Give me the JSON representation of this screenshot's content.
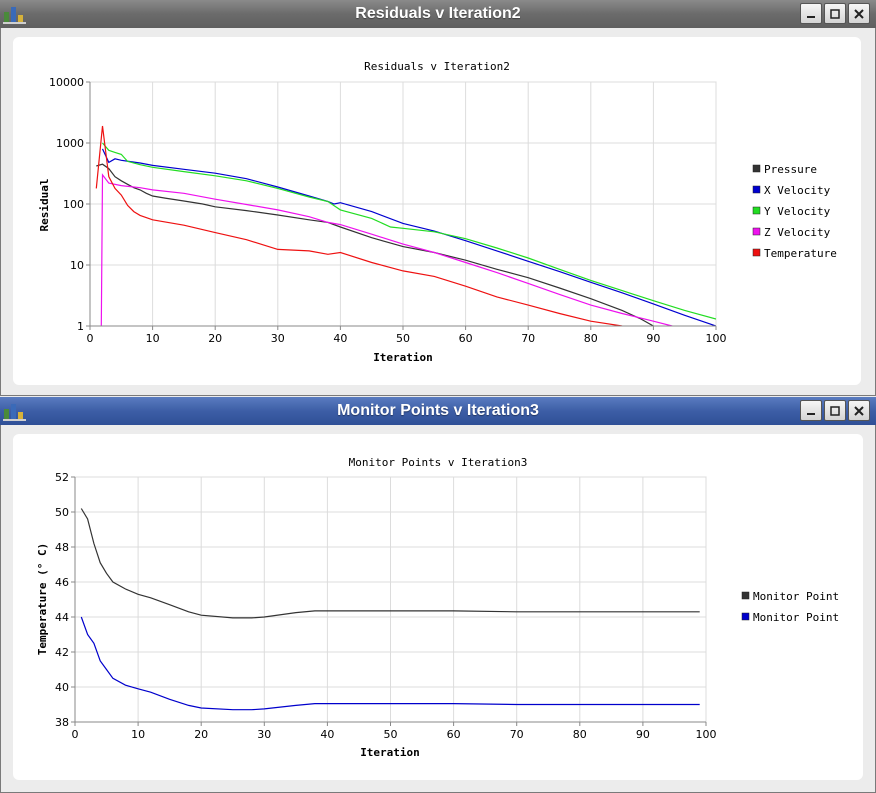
{
  "windows": [
    {
      "title": "Residuals v Iteration2",
      "chart_data": {
        "type": "line",
        "title": "Residuals v Iteration2",
        "xlabel": "Iteration",
        "ylabel": "Residual",
        "xlim": [
          0,
          100
        ],
        "ylim": [
          1,
          10000
        ],
        "yscale": "log",
        "xticks": [
          0,
          10,
          20,
          30,
          40,
          50,
          60,
          70,
          80,
          90,
          100
        ],
        "yticks": [
          1,
          10,
          100,
          1000,
          10000
        ],
        "grid": true,
        "legend": "right",
        "series": [
          {
            "name": "Pressure",
            "color": "#333333",
            "points": [
              [
                1,
                420
              ],
              [
                2,
                450
              ],
              [
                3,
                380
              ],
              [
                4,
                280
              ],
              [
                5,
                240
              ],
              [
                6,
                210
              ],
              [
                7,
                185
              ],
              [
                8,
                170
              ],
              [
                9,
                150
              ],
              [
                10,
                135
              ],
              [
                12,
                125
              ],
              [
                15,
                112
              ],
              [
                18,
                100
              ],
              [
                20,
                90
              ],
              [
                25,
                78
              ],
              [
                30,
                66
              ],
              [
                35,
                55
              ],
              [
                38,
                50
              ],
              [
                40,
                42
              ],
              [
                45,
                28
              ],
              [
                50,
                20
              ],
              [
                55,
                16
              ],
              [
                60,
                12
              ],
              [
                65,
                8.5
              ],
              [
                70,
                6.2
              ],
              [
                75,
                4.2
              ],
              [
                80,
                2.8
              ],
              [
                85,
                1.8
              ],
              [
                88,
                1.3
              ],
              [
                90,
                1.0
              ]
            ]
          },
          {
            "name": "X Velocity",
            "color": "#0000d0",
            "points": [
              [
                2,
                800
              ],
              [
                3,
                480
              ],
              [
                4,
                550
              ],
              [
                5,
                520
              ],
              [
                8,
                470
              ],
              [
                10,
                430
              ],
              [
                15,
                370
              ],
              [
                20,
                320
              ],
              [
                25,
                260
              ],
              [
                30,
                190
              ],
              [
                35,
                135
              ],
              [
                38,
                110
              ],
              [
                39,
                100
              ],
              [
                40,
                105
              ],
              [
                45,
                75
              ],
              [
                50,
                48
              ],
              [
                55,
                36
              ],
              [
                60,
                25
              ],
              [
                65,
                17
              ],
              [
                70,
                11.5
              ],
              [
                75,
                7.8
              ],
              [
                80,
                5.2
              ],
              [
                85,
                3.5
              ],
              [
                90,
                2.3
              ],
              [
                95,
                1.5
              ],
              [
                100,
                1.0
              ]
            ]
          },
          {
            "name": "Y Velocity",
            "color": "#22dd22",
            "points": [
              [
                2,
                1000
              ],
              [
                3,
                760
              ],
              [
                4,
                700
              ],
              [
                5,
                650
              ],
              [
                6,
                500
              ],
              [
                8,
                440
              ],
              [
                10,
                400
              ],
              [
                15,
                340
              ],
              [
                20,
                290
              ],
              [
                25,
                240
              ],
              [
                30,
                180
              ],
              [
                35,
                130
              ],
              [
                38,
                110
              ],
              [
                40,
                80
              ],
              [
                45,
                58
              ],
              [
                48,
                42
              ],
              [
                50,
                40
              ],
              [
                55,
                35
              ],
              [
                60,
                27
              ],
              [
                65,
                19
              ],
              [
                70,
                13
              ],
              [
                75,
                8.5
              ],
              [
                80,
                5.6
              ],
              [
                85,
                3.8
              ],
              [
                90,
                2.6
              ],
              [
                95,
                1.8
              ],
              [
                100,
                1.3
              ]
            ]
          },
          {
            "name": "Z Velocity",
            "color": "#ee11ee",
            "points": [
              [
                1.8,
                1
              ],
              [
                2,
                300
              ],
              [
                3,
                220
              ],
              [
                5,
                200
              ],
              [
                8,
                185
              ],
              [
                10,
                170
              ],
              [
                15,
                150
              ],
              [
                20,
                120
              ],
              [
                25,
                98
              ],
              [
                30,
                80
              ],
              [
                35,
                62
              ],
              [
                38,
                50
              ],
              [
                40,
                46
              ],
              [
                45,
                32
              ],
              [
                50,
                22
              ],
              [
                55,
                16
              ],
              [
                60,
                11
              ],
              [
                65,
                7.5
              ],
              [
                70,
                5
              ],
              [
                75,
                3.3
              ],
              [
                80,
                2.2
              ],
              [
                85,
                1.6
              ],
              [
                90,
                1.2
              ],
              [
                93,
                1.0
              ]
            ]
          },
          {
            "name": "Temperature",
            "color": "#ee1111",
            "points": [
              [
                1,
                180
              ],
              [
                2,
                1900
              ],
              [
                3,
                280
              ],
              [
                4,
                180
              ],
              [
                5,
                140
              ],
              [
                6,
                95
              ],
              [
                7,
                75
              ],
              [
                8,
                65
              ],
              [
                10,
                55
              ],
              [
                15,
                45
              ],
              [
                20,
                34
              ],
              [
                25,
                26
              ],
              [
                30,
                18
              ],
              [
                35,
                17
              ],
              [
                38,
                15
              ],
              [
                40,
                16
              ],
              [
                45,
                11
              ],
              [
                50,
                8
              ],
              [
                55,
                6.5
              ],
              [
                60,
                4.5
              ],
              [
                65,
                3
              ],
              [
                70,
                2.2
              ],
              [
                75,
                1.6
              ],
              [
                80,
                1.2
              ],
              [
                85,
                1.0
              ]
            ]
          }
        ]
      }
    },
    {
      "title": "Monitor Points v Iteration3",
      "chart_data": {
        "type": "line",
        "title": "Monitor Points v Iteration3",
        "xlabel": "Iteration",
        "ylabel": "Temperature (° C)",
        "xlim": [
          0,
          100
        ],
        "ylim": [
          38,
          52
        ],
        "yscale": "linear",
        "xticks": [
          0,
          10,
          20,
          30,
          40,
          50,
          60,
          70,
          80,
          90,
          100
        ],
        "yticks": [
          38,
          40,
          42,
          44,
          46,
          48,
          50,
          52
        ],
        "grid": true,
        "legend": "right",
        "series": [
          {
            "name": "Monitor Point",
            "color": "#333333",
            "points": [
              [
                1,
                50.2
              ],
              [
                2,
                49.6
              ],
              [
                3,
                48.2
              ],
              [
                4,
                47.1
              ],
              [
                5,
                46.5
              ],
              [
                6,
                46.0
              ],
              [
                8,
                45.6
              ],
              [
                10,
                45.3
              ],
              [
                12,
                45.1
              ],
              [
                15,
                44.7
              ],
              [
                18,
                44.3
              ],
              [
                20,
                44.1
              ],
              [
                25,
                43.95
              ],
              [
                28,
                43.95
              ],
              [
                30,
                44.0
              ],
              [
                35,
                44.25
              ],
              [
                38,
                44.35
              ],
              [
                40,
                44.35
              ],
              [
                50,
                44.35
              ],
              [
                60,
                44.35
              ],
              [
                70,
                44.3
              ],
              [
                80,
                44.3
              ],
              [
                90,
                44.3
              ],
              [
                99,
                44.3
              ]
            ]
          },
          {
            "name": "Monitor Point",
            "color": "#0000cc",
            "points": [
              [
                1,
                44.0
              ],
              [
                2,
                43.0
              ],
              [
                3,
                42.5
              ],
              [
                4,
                41.5
              ],
              [
                5,
                41.0
              ],
              [
                6,
                40.5
              ],
              [
                8,
                40.1
              ],
              [
                10,
                39.9
              ],
              [
                12,
                39.7
              ],
              [
                15,
                39.3
              ],
              [
                18,
                38.95
              ],
              [
                20,
                38.8
              ],
              [
                25,
                38.7
              ],
              [
                28,
                38.7
              ],
              [
                30,
                38.75
              ],
              [
                35,
                38.95
              ],
              [
                38,
                39.05
              ],
              [
                40,
                39.05
              ],
              [
                50,
                39.05
              ],
              [
                60,
                39.05
              ],
              [
                70,
                39.0
              ],
              [
                80,
                39.0
              ],
              [
                90,
                39.0
              ],
              [
                99,
                39.0
              ]
            ]
          }
        ]
      }
    }
  ]
}
